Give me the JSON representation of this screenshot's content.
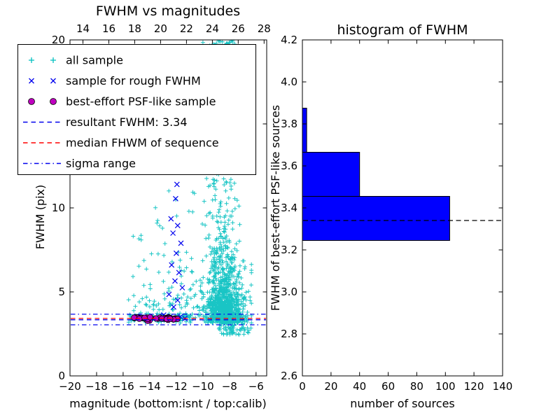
{
  "figure": {
    "background": "#ffffff"
  },
  "chart_data": [
    {
      "type": "scatter",
      "title": "FWHM vs magnitudes",
      "xlabel": "magnitude (bottom:isnt / top:calib)",
      "ylabel": "FWHM (pix)",
      "xlim": [
        -20,
        -5.2
      ],
      "top_xlim": [
        13.0,
        28.2
      ],
      "ylim": [
        0,
        20
      ],
      "bottom_ticks": {
        "values": [
          -20,
          -18,
          -16,
          -14,
          -12,
          -10,
          -8,
          -6
        ],
        "labels": [
          "−20",
          "−18",
          "−16",
          "−14",
          "−12",
          "−10",
          "−8",
          "−6"
        ]
      },
      "top_ticks": {
        "values": [
          14,
          16,
          18,
          20,
          22,
          24,
          26,
          28
        ],
        "labels": [
          "14",
          "16",
          "18",
          "20",
          "22",
          "24",
          "26",
          "28"
        ]
      },
      "y_ticks": {
        "values": [
          0,
          5,
          10,
          15,
          20
        ],
        "labels": [
          "0",
          "5",
          "10",
          "15",
          "20"
        ]
      },
      "colors": {
        "all_sample": "#00bfbf",
        "rough": "#0000ee",
        "psf": "#bf00bf",
        "median": "#ff0000",
        "resultant": "#0000ee",
        "sigma": "#0000ee"
      },
      "seed": 20240613,
      "resultant_fwhm": 3.34,
      "series": {
        "all_sample": {
          "label": "all sample",
          "marker": "plus",
          "clusters": [
            {
              "n": 800,
              "x": {
                "type": "normal",
                "mu": -8.3,
                "sigma": 0.75,
                "min": -10.8,
                "max": -6.35
              },
              "y": {
                "type": "exp",
                "base": 3.15,
                "scale": 1.15,
                "max": 20
              }
            },
            {
              "n": 400,
              "x": {
                "type": "normal",
                "mu": -8.55,
                "sigma": 0.55,
                "min": -10.6,
                "max": -6.9
              },
              "y": {
                "type": "power",
                "min": 4,
                "max": 20,
                "p": 2
              }
            },
            {
              "n": 70,
              "x": {
                "type": "normal",
                "mu": -8.5,
                "sigma": 0.55,
                "min": -10,
                "max": -7
              },
              "y": {
                "type": "uniform",
                "min": 18.4,
                "max": 20
              }
            },
            {
              "n": 120,
              "x": {
                "type": "uniform",
                "min": -15.6,
                "max": -10.7
              },
              "y": {
                "type": "exp",
                "base": 3.15,
                "scale": 1.9,
                "max": 13.2
              }
            },
            {
              "n": 30,
              "x": {
                "type": "uniform",
                "min": -11,
                "max": -9.2
              },
              "y": {
                "type": "exp",
                "base": 3.3,
                "scale": 2.6,
                "max": 14
              }
            },
            {
              "n": 110,
              "x": {
                "type": "uniform",
                "min": -15.4,
                "max": -10.9
              },
              "y": {
                "type": "normal",
                "mu": 3.45,
                "sigma": 0.12,
                "min": 3.1,
                "max": 3.9
              }
            },
            {
              "n": 60,
              "x": {
                "type": "uniform",
                "min": -8.8,
                "max": -6.35
              },
              "y": {
                "type": "uniform",
                "min": 2.45,
                "max": 3.2
              }
            }
          ]
        },
        "rough_fwhm": {
          "label": "sample for rough FWHM",
          "marker": "cross",
          "points": [
            [
              -11.95,
              11.4
            ],
            [
              -12.05,
              10.55
            ],
            [
              -12.4,
              9.35
            ],
            [
              -11.9,
              8.95
            ],
            [
              -12.25,
              8.5
            ],
            [
              -11.65,
              7.9
            ],
            [
              -12.0,
              7.3
            ],
            [
              -12.35,
              6.6
            ],
            [
              -11.8,
              6.15
            ],
            [
              -12.1,
              5.65
            ],
            [
              -11.55,
              5.25
            ],
            [
              -12.55,
              4.85
            ],
            [
              -11.9,
              4.5
            ],
            [
              -12.2,
              4.1
            ],
            [
              -12.95,
              3.62
            ],
            [
              -12.5,
              3.5
            ],
            [
              -11.7,
              3.52
            ],
            [
              -13.75,
              3.45
            ],
            [
              -11.35,
              3.42
            ],
            [
              -14.6,
              3.5
            ],
            [
              -12.8,
              3.38
            ]
          ]
        },
        "psf_like": {
          "label": "best-effort PSF-like sample",
          "marker": "circle",
          "cluster": {
            "n": 42,
            "x": {
              "type": "uniform",
              "min": -15.2,
              "max": -11.9
            },
            "y": {
              "type": "normal",
              "mu": 3.42,
              "sigma": 0.05,
              "min": 3.28,
              "max": 3.58
            }
          }
        }
      },
      "hlines": [
        {
          "name": "sigma-upper",
          "y": 3.67,
          "style": "dashdot",
          "color": "#0000ee",
          "label": "sigma range"
        },
        {
          "name": "median",
          "y": 3.42,
          "style": "dashed",
          "color": "#ff0000",
          "label": "median FHWM of sequence"
        },
        {
          "name": "resultant",
          "y": 3.34,
          "style": "dashed",
          "color": "#0000ee",
          "label": "resultant FWHM: 3.34"
        },
        {
          "name": "sigma-lower",
          "y": 3.04,
          "style": "dashdot",
          "color": "#0000ee",
          "label": "sigma range"
        }
      ],
      "legend": {
        "entries": [
          {
            "type": "plus",
            "color": "#00bfbf",
            "label": "all sample"
          },
          {
            "type": "cross",
            "color": "#0000ee",
            "label": "sample for rough FWHM"
          },
          {
            "type": "circle",
            "color": "#bf00bf",
            "label": "best-effort PSF-like sample"
          },
          {
            "type": "line-dashed",
            "color": "#0000ee",
            "label": "resultant FWHM: 3.34"
          },
          {
            "type": "line-dashed",
            "color": "#ff0000",
            "label": "median FHWM of sequence"
          },
          {
            "type": "line-dashdot",
            "color": "#0000ee",
            "label": "sigma range"
          }
        ]
      }
    },
    {
      "type": "bar",
      "orientation": "horizontal",
      "title": "histogram of FWHM",
      "xlabel": "number of sources",
      "ylabel": "FWHM of best-effort PSF-like sources",
      "xlim": [
        0,
        140
      ],
      "ylim": [
        2.6,
        4.2
      ],
      "x_ticks": {
        "values": [
          0,
          20,
          40,
          60,
          80,
          100,
          120,
          140
        ],
        "labels": [
          "0",
          "20",
          "40",
          "60",
          "80",
          "100",
          "120",
          "140"
        ]
      },
      "y_ticks": {
        "values": [
          2.6,
          2.8,
          3.0,
          3.2,
          3.4,
          3.6,
          3.8,
          4.0,
          4.2
        ],
        "labels": [
          "2.6",
          "2.8",
          "3.0",
          "3.2",
          "3.4",
          "3.6",
          "3.8",
          "4.0",
          "4.2"
        ]
      },
      "bar_color": "#0000ff",
      "bar_edge_color": "#000000",
      "bin_edges": [
        3.245,
        3.455,
        3.665,
        3.875
      ],
      "counts": [
        103,
        40,
        3
      ],
      "dashed_line": {
        "y": 3.34,
        "color": "#000000"
      }
    }
  ]
}
